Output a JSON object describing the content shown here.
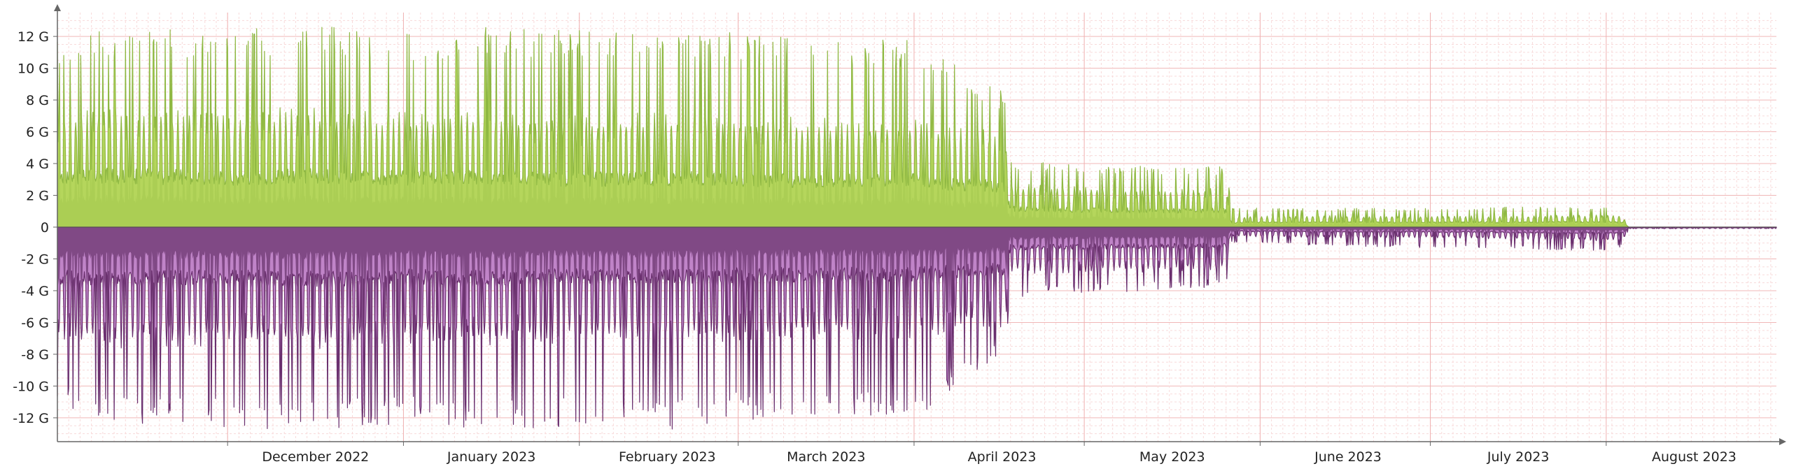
{
  "chart_data": {
    "type": "area",
    "title": "",
    "xlabel": "",
    "ylabel": "",
    "x_range": [
      "2022-11-01",
      "2023-08-31"
    ],
    "ylim": [
      -13.5,
      13.5
    ],
    "unit_suffix": " G",
    "grid": true,
    "legend": "none",
    "x_tick_labels": [
      {
        "date": "2022-12-01",
        "label": "December 2022"
      },
      {
        "date": "2023-01-01",
        "label": "January 2023"
      },
      {
        "date": "2023-02-01",
        "label": "February 2023"
      },
      {
        "date": "2023-03-01",
        "label": "March 2023"
      },
      {
        "date": "2023-04-01",
        "label": "April 2023"
      },
      {
        "date": "2023-05-01",
        "label": "May 2023"
      },
      {
        "date": "2023-06-01",
        "label": "June 2023"
      },
      {
        "date": "2023-07-01",
        "label": "July 2023"
      },
      {
        "date": "2023-08-01",
        "label": "August 2023"
      }
    ],
    "y_ticks": [
      {
        "value": 12,
        "label": "12 G"
      },
      {
        "value": 10,
        "label": "10 G"
      },
      {
        "value": 8,
        "label": "8 G"
      },
      {
        "value": 6,
        "label": "6 G"
      },
      {
        "value": 4,
        "label": "4 G"
      },
      {
        "value": 2,
        "label": "2 G"
      },
      {
        "value": 0,
        "label": "0"
      },
      {
        "value": -2,
        "label": "-2 G"
      },
      {
        "value": -4,
        "label": "-4 G"
      },
      {
        "value": -6,
        "label": "-6 G"
      },
      {
        "value": -8,
        "label": "-8 G"
      },
      {
        "value": -10,
        "label": "-10 G"
      },
      {
        "value": -12,
        "label": "-12 G"
      }
    ],
    "series": [
      {
        "color": "#8fb843",
        "fill": "#b5d65c",
        "direction": "positive",
        "x": [
          "2022-11-01",
          "2022-11-10",
          "2022-11-20",
          "2022-12-01",
          "2022-12-15",
          "2023-01-01",
          "2023-01-15",
          "2023-02-01",
          "2023-02-15",
          "2023-03-01",
          "2023-03-15",
          "2023-04-01",
          "2023-04-10",
          "2023-04-17",
          "2023-04-18",
          "2023-05-01",
          "2023-05-15",
          "2023-05-26",
          "2023-05-27",
          "2023-06-15",
          "2023-07-01",
          "2023-07-20",
          "2023-08-01",
          "2023-08-04",
          "2023-08-05",
          "2023-08-31"
        ],
        "values": [
          7.5,
          7.8,
          7.6,
          7.5,
          7.8,
          7.4,
          7.6,
          7.2,
          7.4,
          7.3,
          7.0,
          7.1,
          6.4,
          6.2,
          2.8,
          2.6,
          2.5,
          2.5,
          0.7,
          0.75,
          0.7,
          0.75,
          0.8,
          0.7,
          0.0,
          0.0
        ],
        "peaks": [
          11.8,
          12.5,
          12.6,
          12.4,
          12.8,
          12.2,
          12.6,
          12.4,
          12.8,
          12.2,
          11.8,
          11.9,
          9.8,
          8.5,
          4.2,
          4.0,
          3.8,
          3.8,
          1.2,
          1.2,
          1.2,
          1.3,
          1.3,
          1.2,
          0.0,
          0.0
        ]
      },
      {
        "color": "#6a2f6e",
        "fill": "#c084c8",
        "direction": "negative",
        "x": [
          "2022-11-01",
          "2022-11-10",
          "2022-11-20",
          "2022-12-01",
          "2022-12-15",
          "2023-01-01",
          "2023-01-15",
          "2023-02-01",
          "2023-02-15",
          "2023-03-01",
          "2023-03-15",
          "2023-04-01",
          "2023-04-10",
          "2023-04-17",
          "2023-04-18",
          "2023-05-01",
          "2023-05-15",
          "2023-05-26",
          "2023-05-27",
          "2023-06-15",
          "2023-07-01",
          "2023-07-20",
          "2023-08-01",
          "2023-08-04",
          "2023-08-05",
          "2023-08-31"
        ],
        "values": [
          -7.6,
          -7.8,
          -7.7,
          -7.6,
          -7.9,
          -7.5,
          -7.7,
          -7.4,
          -7.6,
          -7.3,
          -7.2,
          -7.2,
          -6.6,
          -6.4,
          -3.0,
          -3.0,
          -2.9,
          -2.8,
          -0.6,
          -0.7,
          -0.7,
          -0.8,
          -0.9,
          -0.8,
          -0.1,
          -0.1
        ],
        "peaks": [
          -11.8,
          -12.4,
          -12.6,
          -12.6,
          -12.8,
          -12.4,
          -12.8,
          -12.6,
          -12.9,
          -12.2,
          -12.0,
          -12.2,
          -9.5,
          -8.0,
          -4.4,
          -4.2,
          -4.0,
          -3.8,
          -1.0,
          -1.2,
          -1.3,
          -1.4,
          -1.5,
          -1.2,
          -0.1,
          -0.1
        ]
      }
    ]
  }
}
